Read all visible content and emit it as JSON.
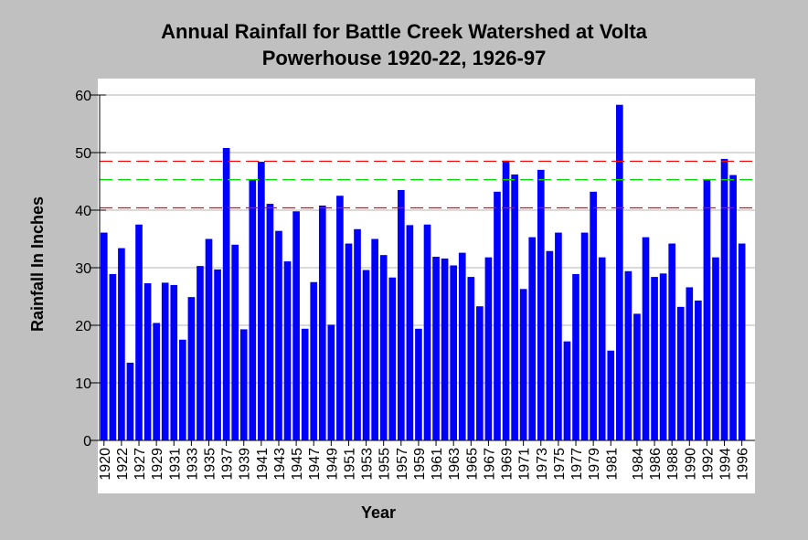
{
  "chart_data": {
    "type": "bar",
    "title_lines": [
      "Annual Rainfall for Battle Creek Watershed at Volta",
      "Powerhouse 1920-22, 1926-97"
    ],
    "xlabel": "Year",
    "ylabel": "Rainfall In Inches",
    "ylim": [
      0,
      60
    ],
    "yticks": [
      0,
      10,
      20,
      30,
      40,
      50,
      60
    ],
    "grid": "horizontal",
    "categories": [
      "1920",
      "1921",
      "1922",
      "1926",
      "1927",
      "1928",
      "1929",
      "1930",
      "1931",
      "1932",
      "1933",
      "1934",
      "1935",
      "1936",
      "1937",
      "1938",
      "1939",
      "1940",
      "1941",
      "1942",
      "1943",
      "1944",
      "1945",
      "1946",
      "1947",
      "1948",
      "1949",
      "1950",
      "1951",
      "1952",
      "1953",
      "1954",
      "1955",
      "1956",
      "1957",
      "1958",
      "1959",
      "1960",
      "1961",
      "1962",
      "1963",
      "1964",
      "1965",
      "1966",
      "1967",
      "1968",
      "1969",
      "1970",
      "1971",
      "1972",
      "1973",
      "1974",
      "1975",
      "1976",
      "1977",
      "1978",
      "1979",
      "1980",
      "1981",
      "1982",
      "1983",
      "1984",
      "1985",
      "1986",
      "1987",
      "1988",
      "1989",
      "1990",
      "1991",
      "1992",
      "1993",
      "1994",
      "1995",
      "1996",
      "1997"
    ],
    "xtick_labels": [
      "1920",
      "1922",
      "1927",
      "1929",
      "1931",
      "1933",
      "1935",
      "1937",
      "1939",
      "1941",
      "1943",
      "1945",
      "1947",
      "1949",
      "1951",
      "1953",
      "1955",
      "1957",
      "1959",
      "1961",
      "1963",
      "1965",
      "1967",
      "1969",
      "1971",
      "1973",
      "1975",
      "1977",
      "1979",
      "1981",
      "1984",
      "1986",
      "1988",
      "1990",
      "1992",
      "1994",
      "1996"
    ],
    "values": [
      36.1,
      28.9,
      33.4,
      13.5,
      37.5,
      27.3,
      20.4,
      27.4,
      27.0,
      17.5,
      24.9,
      30.3,
      35.0,
      29.7,
      50.8,
      34.0,
      19.3,
      45.4,
      48.4,
      41.1,
      36.4,
      31.1,
      39.8,
      19.4,
      27.5,
      40.8,
      20.1,
      42.5,
      34.2,
      36.7,
      29.6,
      35.0,
      32.2,
      28.3,
      43.5,
      37.4,
      19.4,
      37.5,
      31.9,
      31.6,
      30.4,
      32.6,
      28.4,
      23.3,
      31.8,
      43.2,
      48.6,
      46.2,
      26.3,
      35.3,
      47.0,
      32.9,
      36.1,
      17.2,
      28.9,
      36.1,
      43.2,
      31.8,
      15.6,
      58.3,
      29.4,
      22.0,
      35.3,
      28.4,
      29.0,
      34.2,
      23.2,
      26.6,
      24.3,
      45.4,
      31.8,
      48.9,
      46.1,
      34.2,
      0
    ],
    "bar_color": "#0000ff",
    "reference_lines": [
      {
        "value": 48.5,
        "color": "#ff0000",
        "style": "dashed"
      },
      {
        "value": 45.3,
        "color": "#00dd00",
        "style": "dashed"
      },
      {
        "value": 40.4,
        "color": "#ff0000",
        "style": "dashed"
      }
    ]
  }
}
